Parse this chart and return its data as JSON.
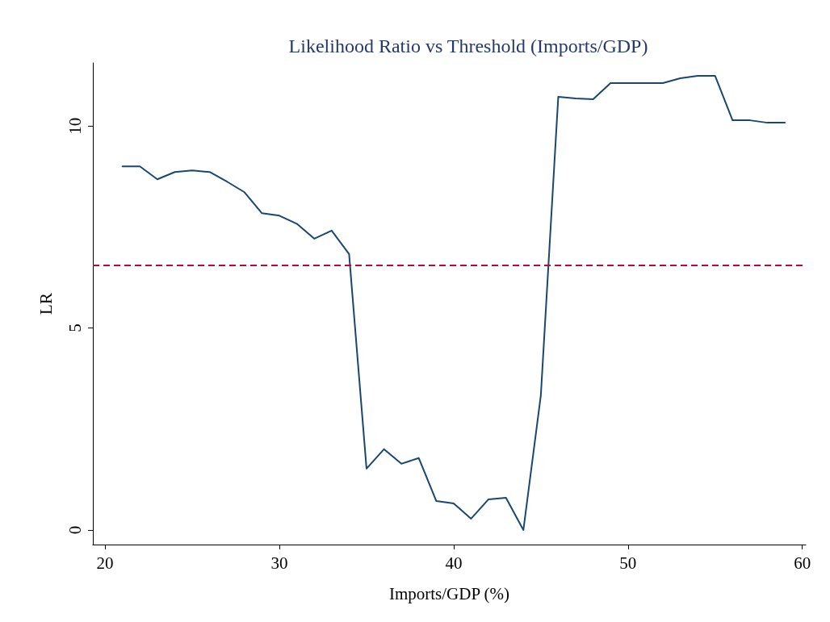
{
  "chart_data": {
    "type": "line",
    "title": "Likelihood Ratio vs Threshold (Imports/GDP)",
    "xlabel": "Imports/GDP (%)",
    "ylabel": "LR",
    "x": [
      21,
      22,
      23,
      24,
      25,
      26,
      27,
      28,
      29,
      30,
      31,
      32,
      33,
      34,
      35,
      36,
      37,
      38,
      39,
      40,
      41,
      42,
      43,
      44,
      45,
      46,
      47,
      48,
      49,
      50,
      51,
      52,
      53,
      54,
      55,
      56,
      57,
      58,
      59
    ],
    "series": [
      {
        "color": "#1a476f",
        "values": [
          9.0,
          9.0,
          8.68,
          8.86,
          8.9,
          8.86,
          8.62,
          8.36,
          7.84,
          7.78,
          7.58,
          7.21,
          7.41,
          6.83,
          1.52,
          2.0,
          1.64,
          1.78,
          0.72,
          0.66,
          0.28,
          0.76,
          0.8,
          0,
          3.33,
          10.72,
          10.68,
          10.66,
          11.06,
          11.06,
          11.06,
          11.06,
          11.18,
          11.24,
          11.24,
          10.14,
          10.14,
          10.08,
          10.08
        ]
      }
    ],
    "xlim": [
      19.3,
      60.2
    ],
    "xticks": [
      20,
      30,
      40,
      50,
      60
    ],
    "ylim": [
      -0.36,
      11.56
    ],
    "yticks": [
      0,
      5,
      10
    ],
    "ref_lines": [
      {
        "axis": "y",
        "value": 6.55,
        "color": "#c10534",
        "line_style": "dashed"
      }
    ],
    "grid": false,
    "marker": "none",
    "line_style": "solid"
  }
}
